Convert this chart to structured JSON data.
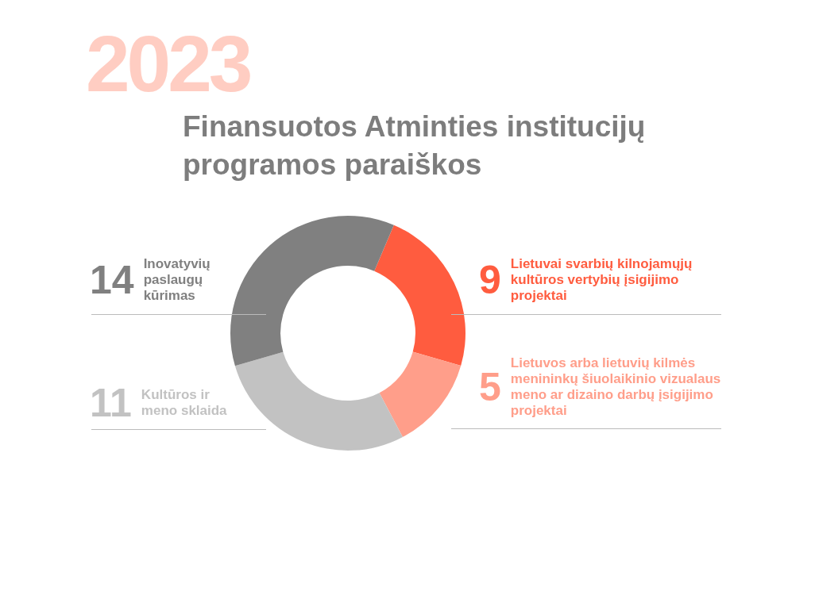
{
  "chart_data": {
    "type": "donut",
    "title": "Finansuotos Atminties institucijų programos paraiškos",
    "annotations": [
      "2023"
    ],
    "categories": [
      "Lietuvai svarbių kilnojamųjų kultūros vertybių įsigijimo projektai",
      "Lietuvos arba lietuvių kilmės menininkų šiuolaikinio vizualaus meno ar dizaino darbų įsigijimo projektai",
      "Kultūros ir meno sklaida",
      "Inovatyvių paslaugų kūrimas"
    ],
    "values": [
      9,
      5,
      11,
      14
    ],
    "colors": [
      "#ff5c3f",
      "#ff9e8a",
      "#c2c2c2",
      "#808080"
    ],
    "data_labels": true
  }
}
